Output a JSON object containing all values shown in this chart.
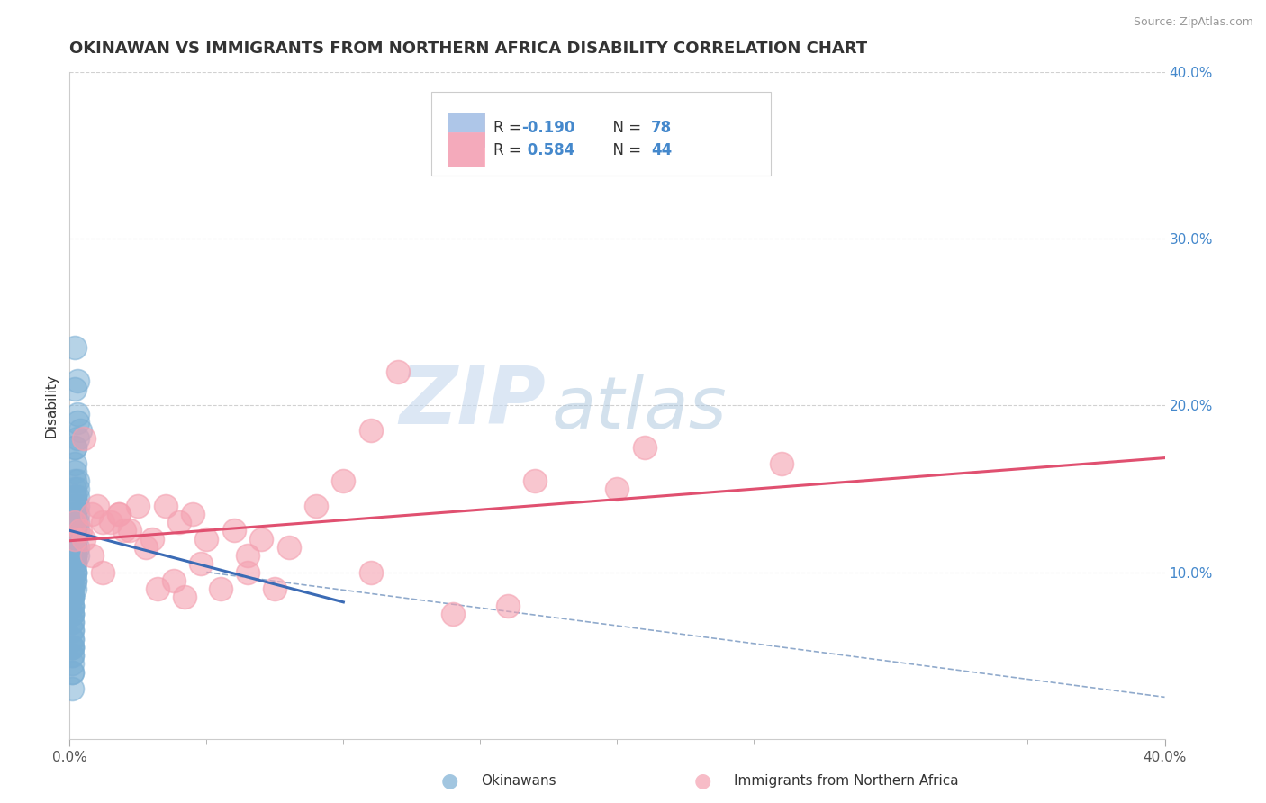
{
  "title": "OKINAWAN VS IMMIGRANTS FROM NORTHERN AFRICA DISABILITY CORRELATION CHART",
  "source": "Source: ZipAtlas.com",
  "ylabel": "Disability",
  "xlim": [
    0.0,
    0.4
  ],
  "ylim": [
    0.0,
    0.4
  ],
  "group1_name": "Okinawans",
  "group1_color": "#7BAFD4",
  "group1_line_color": "#3B6BB5",
  "group1_R": -0.19,
  "group1_N": 78,
  "group2_name": "Immigrants from Northern Africa",
  "group2_color": "#F4A0B0",
  "group2_line_color": "#E05070",
  "group2_R": 0.584,
  "group2_N": 44,
  "legend_box_color1": "#AEC6E8",
  "legend_box_color2": "#F4AABB",
  "watermark_zip_color": "#B8CCE4",
  "watermark_atlas_color": "#8BAED4",
  "background_color": "#FFFFFF",
  "grid_color": "#CCCCCC",
  "title_fontsize": 13,
  "group1_scatter_x": [
    0.002,
    0.003,
    0.003,
    0.002,
    0.004,
    0.003,
    0.002,
    0.002,
    0.003,
    0.002,
    0.002,
    0.003,
    0.002,
    0.003,
    0.002,
    0.003,
    0.002,
    0.002,
    0.003,
    0.002,
    0.002,
    0.003,
    0.002,
    0.002,
    0.003,
    0.002,
    0.002,
    0.002,
    0.003,
    0.002,
    0.002,
    0.002,
    0.003,
    0.002,
    0.002,
    0.002,
    0.002,
    0.002,
    0.003,
    0.002,
    0.002,
    0.002,
    0.002,
    0.002,
    0.002,
    0.002,
    0.002,
    0.002,
    0.002,
    0.002,
    0.001,
    0.001,
    0.001,
    0.001,
    0.001,
    0.001,
    0.001,
    0.001,
    0.001,
    0.001,
    0.001,
    0.001,
    0.001,
    0.001,
    0.001,
    0.001,
    0.001,
    0.001,
    0.001,
    0.001,
    0.001,
    0.001,
    0.001,
    0.001,
    0.001,
    0.001,
    0.001,
    0.001
  ],
  "group1_scatter_y": [
    0.235,
    0.215,
    0.195,
    0.21,
    0.185,
    0.19,
    0.175,
    0.175,
    0.18,
    0.165,
    0.155,
    0.155,
    0.16,
    0.15,
    0.15,
    0.145,
    0.14,
    0.145,
    0.14,
    0.135,
    0.145,
    0.135,
    0.13,
    0.13,
    0.125,
    0.13,
    0.12,
    0.125,
    0.13,
    0.125,
    0.12,
    0.12,
    0.115,
    0.12,
    0.115,
    0.11,
    0.115,
    0.11,
    0.11,
    0.115,
    0.11,
    0.105,
    0.105,
    0.11,
    0.1,
    0.1,
    0.095,
    0.095,
    0.09,
    0.1,
    0.095,
    0.09,
    0.09,
    0.085,
    0.085,
    0.08,
    0.085,
    0.085,
    0.08,
    0.08,
    0.075,
    0.075,
    0.075,
    0.07,
    0.07,
    0.065,
    0.065,
    0.06,
    0.055,
    0.055,
    0.05,
    0.045,
    0.04,
    0.04,
    0.05,
    0.055,
    0.06,
    0.03
  ],
  "group2_scatter_x": [
    0.002,
    0.004,
    0.005,
    0.008,
    0.01,
    0.012,
    0.015,
    0.018,
    0.02,
    0.025,
    0.03,
    0.035,
    0.04,
    0.045,
    0.05,
    0.06,
    0.065,
    0.07,
    0.08,
    0.09,
    0.1,
    0.11,
    0.12,
    0.002,
    0.005,
    0.008,
    0.012,
    0.018,
    0.022,
    0.028,
    0.032,
    0.038,
    0.042,
    0.048,
    0.055,
    0.065,
    0.075,
    0.11,
    0.14,
    0.17,
    0.21,
    0.26,
    0.16,
    0.2
  ],
  "group2_scatter_y": [
    0.13,
    0.125,
    0.12,
    0.135,
    0.14,
    0.13,
    0.13,
    0.135,
    0.125,
    0.14,
    0.12,
    0.14,
    0.13,
    0.135,
    0.12,
    0.125,
    0.11,
    0.12,
    0.115,
    0.14,
    0.155,
    0.185,
    0.22,
    0.12,
    0.18,
    0.11,
    0.1,
    0.135,
    0.125,
    0.115,
    0.09,
    0.095,
    0.085,
    0.105,
    0.09,
    0.1,
    0.09,
    0.1,
    0.075,
    0.155,
    0.175,
    0.165,
    0.08,
    0.15
  ],
  "blue_line_x": [
    0.0,
    0.1
  ],
  "blue_line_y": [
    0.125,
    0.082
  ],
  "dashed_line_x": [
    0.05,
    0.4
  ],
  "dashed_line_y": [
    0.1,
    0.025
  ]
}
